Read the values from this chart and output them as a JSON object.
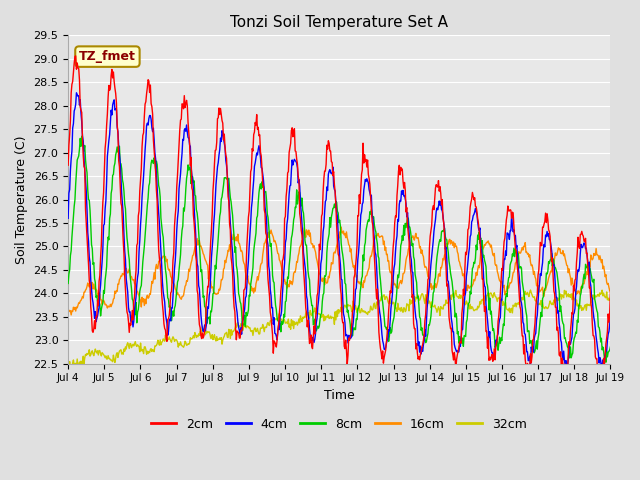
{
  "title": "Tonzi Soil Temperature Set A",
  "xlabel": "Time",
  "ylabel": "Soil Temperature (C)",
  "annotation": "TZ_fmet",
  "ylim": [
    22.5,
    29.5
  ],
  "xlim": [
    0,
    15
  ],
  "colors": {
    "2cm": "#ff0000",
    "4cm": "#0000ff",
    "8cm": "#00cc00",
    "16cm": "#ff8c00",
    "32cm": "#cccc00"
  },
  "fig_bg": "#e0e0e0",
  "plot_bg": "#e8e8e8",
  "n_points": 720,
  "grid_color": "#ffffff",
  "legend_items": [
    "2cm",
    "4cm",
    "8cm",
    "16cm",
    "32cm"
  ],
  "tick_labels": [
    "Jul 4",
    "Jul 5",
    "Jul 6",
    "Jul 7",
    "Jul 8",
    "Jul 9",
    "Jul 10",
    "Jul 11",
    "Jul 12",
    "Jul 13",
    "Jul 14",
    "Jul 15",
    "Jul 16",
    "Jul 17",
    "Jul 18",
    "Jul 19"
  ]
}
